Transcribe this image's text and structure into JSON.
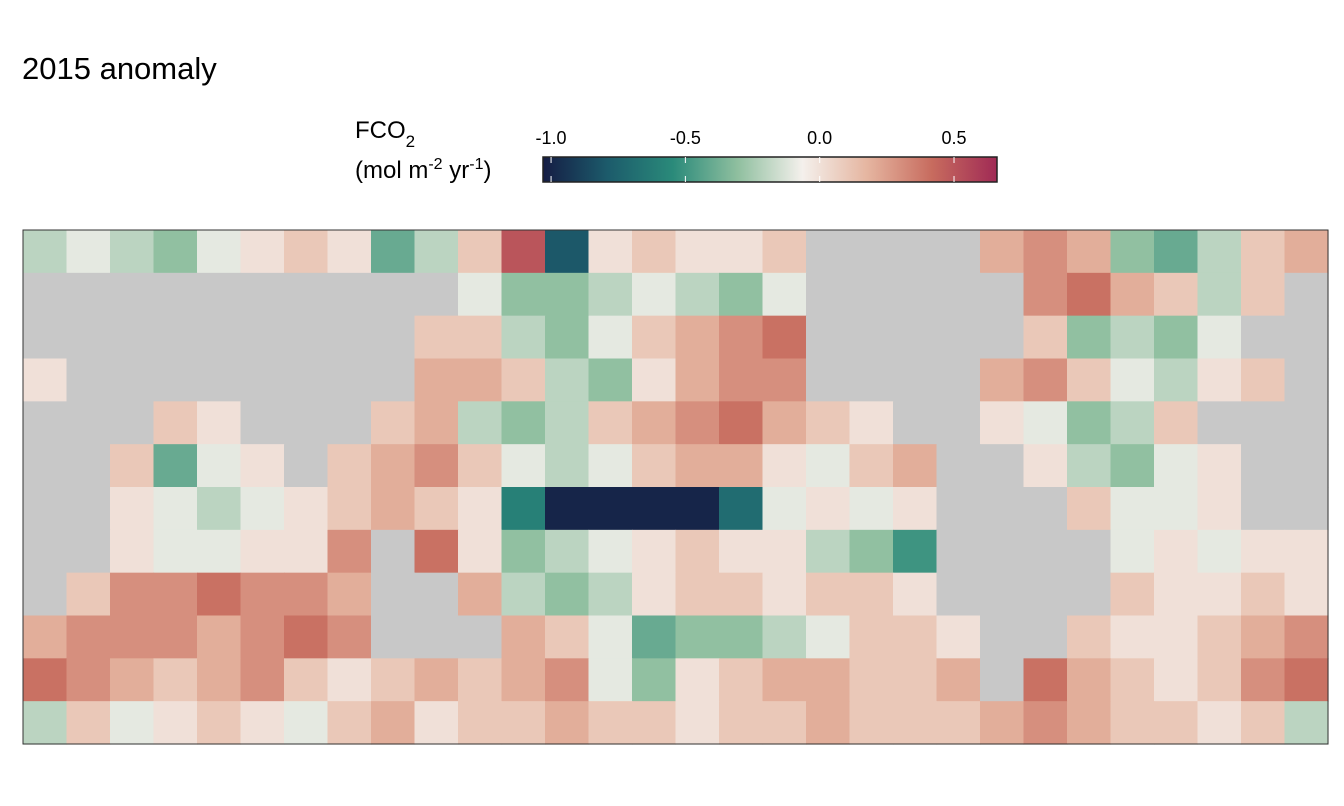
{
  "chart_data": {
    "type": "heatmap",
    "title": "2015 anomaly",
    "legend_title": {
      "main": "FCO",
      "sub": "2"
    },
    "legend_units": [
      "(mol m",
      "-2",
      " yr",
      "-1",
      ")"
    ],
    "clim": [
      -1.03,
      0.66
    ],
    "cticks": [
      {
        "value": -1.0,
        "label": "-1.0"
      },
      -0.5,
      {
        "value": 0.0,
        "label": "0.0"
      },
      0.5
    ],
    "colormap": [
      "#151d44",
      "#1c5b6b",
      "#2a8a7a",
      "#8fbf9f",
      "#f4f0ec",
      "#e5b5a0",
      "#c76b5e",
      "#a02a55"
    ],
    "na_color": "#c8c8c8",
    "values": [
      [
        -0.2,
        -0.1,
        -0.2,
        -0.3,
        -0.1,
        0.0,
        0.1,
        0.0,
        -0.4,
        -0.2,
        0.1,
        0.5,
        -0.8,
        0.0,
        0.1,
        0.0,
        0.0,
        0.1,
        null,
        null,
        null,
        null,
        0.2,
        0.3,
        0.2,
        -0.3,
        -0.4,
        -0.2,
        0.1,
        0.2
      ],
      [
        null,
        null,
        null,
        null,
        null,
        null,
        null,
        null,
        null,
        null,
        -0.1,
        -0.3,
        -0.3,
        -0.2,
        -0.1,
        -0.2,
        -0.3,
        -0.1,
        null,
        null,
        null,
        null,
        null,
        0.3,
        0.4,
        0.2,
        0.1,
        -0.2,
        0.1,
        null
      ],
      [
        null,
        null,
        null,
        null,
        null,
        null,
        null,
        null,
        null,
        0.1,
        0.1,
        -0.2,
        -0.3,
        -0.1,
        0.1,
        0.2,
        0.3,
        0.4,
        null,
        null,
        null,
        null,
        null,
        0.1,
        -0.3,
        -0.2,
        -0.3,
        -0.1,
        null,
        null
      ],
      [
        0.0,
        null,
        null,
        null,
        null,
        null,
        null,
        null,
        null,
        0.2,
        0.2,
        0.1,
        -0.2,
        -0.3,
        0.0,
        0.2,
        0.3,
        0.3,
        null,
        null,
        null,
        null,
        0.2,
        0.3,
        0.1,
        -0.1,
        -0.2,
        0.0,
        0.1,
        null
      ],
      [
        null,
        null,
        null,
        0.1,
        0.0,
        null,
        null,
        null,
        0.1,
        0.2,
        -0.2,
        -0.3,
        -0.2,
        0.1,
        0.2,
        0.3,
        0.4,
        0.2,
        0.1,
        0.0,
        null,
        null,
        0.0,
        -0.1,
        -0.3,
        -0.2,
        0.1,
        null,
        null,
        null
      ],
      [
        null,
        null,
        0.1,
        -0.4,
        -0.1,
        0.0,
        null,
        0.1,
        0.2,
        0.3,
        0.1,
        -0.1,
        -0.2,
        -0.1,
        0.1,
        0.2,
        0.2,
        0.0,
        -0.1,
        0.1,
        0.2,
        null,
        null,
        0.0,
        -0.2,
        -0.3,
        -0.1,
        0.0,
        null,
        null
      ],
      [
        null,
        null,
        0.0,
        -0.1,
        -0.2,
        -0.1,
        0.0,
        0.1,
        0.2,
        0.1,
        0.0,
        -0.6,
        -1.0,
        -1.0,
        -1.0,
        -1.0,
        -0.7,
        -0.1,
        0.0,
        -0.1,
        0.0,
        null,
        null,
        null,
        0.1,
        -0.1,
        -0.1,
        0.0,
        null,
        null
      ],
      [
        null,
        null,
        0.0,
        -0.1,
        -0.1,
        0.0,
        0.0,
        0.3,
        null,
        0.4,
        0.0,
        -0.3,
        -0.2,
        -0.1,
        0.0,
        0.1,
        0.0,
        0.0,
        -0.2,
        -0.3,
        -0.5,
        null,
        null,
        null,
        null,
        -0.1,
        0.0,
        -0.1,
        0.0,
        0.0
      ],
      [
        null,
        0.1,
        0.3,
        0.3,
        0.4,
        0.3,
        0.3,
        0.2,
        null,
        null,
        0.2,
        -0.2,
        -0.3,
        -0.2,
        0.0,
        0.1,
        0.1,
        0.0,
        0.1,
        0.1,
        0.0,
        null,
        null,
        null,
        null,
        0.1,
        0.0,
        0.0,
        0.1,
        0.0
      ],
      [
        0.2,
        0.3,
        0.3,
        0.3,
        0.2,
        0.3,
        0.4,
        0.3,
        null,
        null,
        null,
        0.2,
        0.1,
        -0.1,
        -0.4,
        -0.3,
        -0.3,
        -0.2,
        -0.1,
        0.1,
        0.1,
        0.0,
        null,
        null,
        0.1,
        0.0,
        0.0,
        0.1,
        0.2,
        0.3
      ],
      [
        0.4,
        0.3,
        0.2,
        0.1,
        0.2,
        0.3,
        0.1,
        0.0,
        0.1,
        0.2,
        0.1,
        0.2,
        0.3,
        -0.1,
        -0.3,
        0.0,
        0.1,
        0.2,
        0.2,
        0.1,
        0.1,
        0.2,
        null,
        0.4,
        0.2,
        0.1,
        0.0,
        0.1,
        0.3,
        0.4
      ],
      [
        -0.2,
        0.1,
        -0.1,
        0.0,
        0.1,
        0.0,
        -0.1,
        0.1,
        0.2,
        0.0,
        0.1,
        0.1,
        0.2,
        0.1,
        0.1,
        0.0,
        0.1,
        0.1,
        0.2,
        0.1,
        0.1,
        0.1,
        0.2,
        0.3,
        0.2,
        0.1,
        0.1,
        0.0,
        0.1,
        -0.2
      ]
    ]
  }
}
